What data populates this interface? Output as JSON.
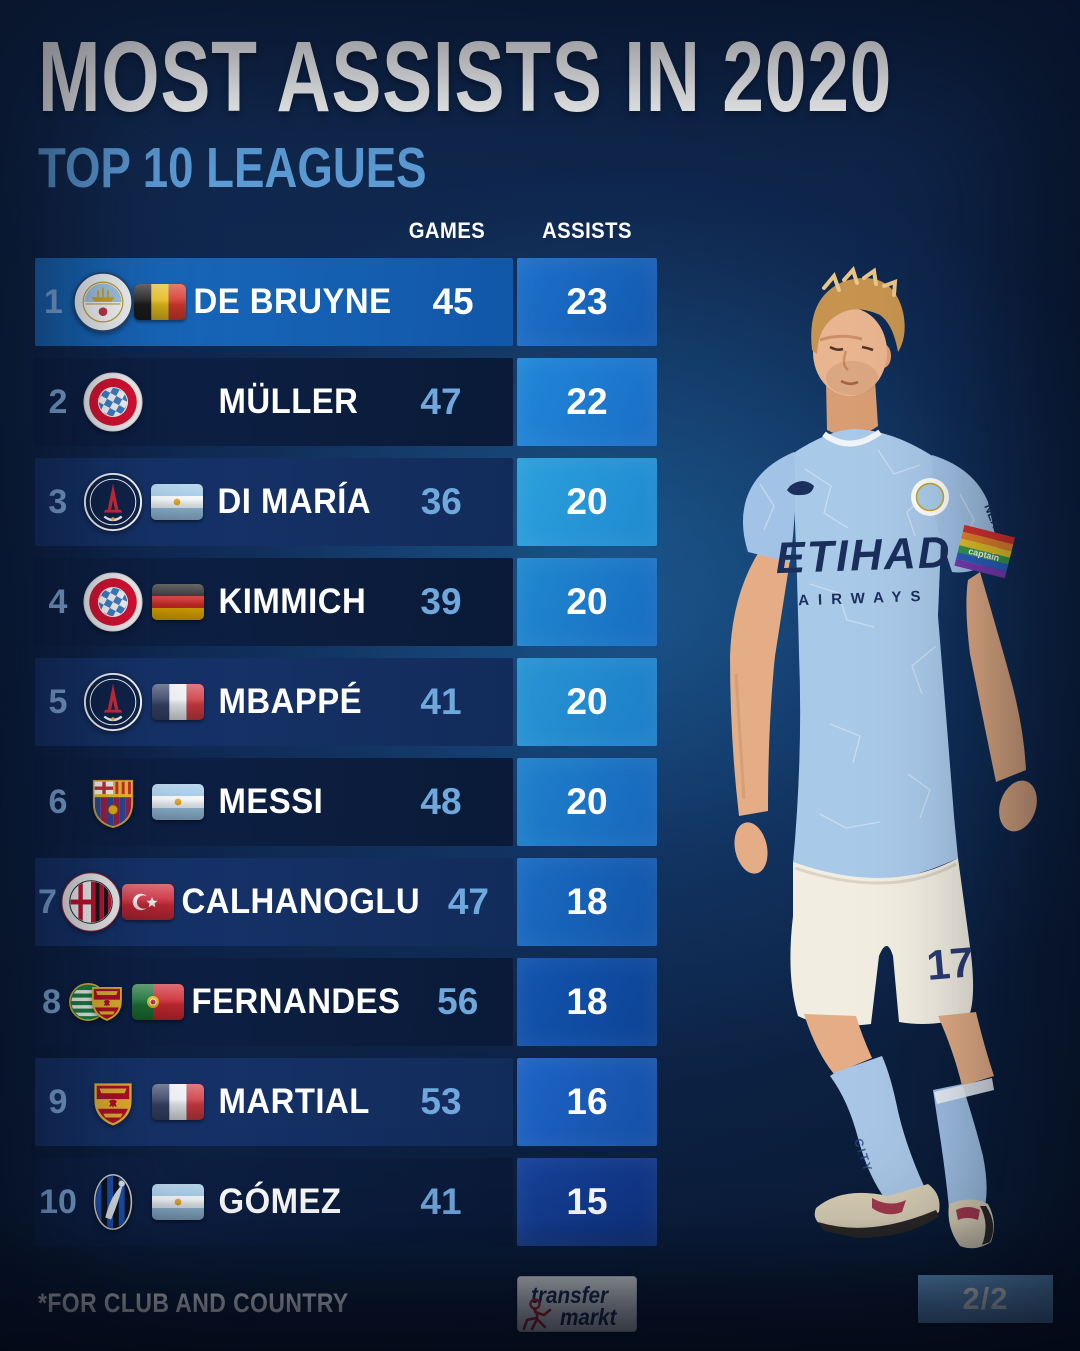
{
  "title": "MOST ASSISTS IN 2020",
  "subtitle": "TOP 10 LEAGUES",
  "table": {
    "headers": {
      "games": "GAMES",
      "assists": "ASSISTS"
    },
    "rows": [
      {
        "rank": "1",
        "player": "DE BRUYNE",
        "clubs": [
          "manchester-city"
        ],
        "nationality": "belgium",
        "games": "45",
        "assists": "23",
        "highlighted": true
      },
      {
        "rank": "2",
        "player": "MÜLLER",
        "clubs": [
          "bayern-munich"
        ],
        "nationality": null,
        "games": "47",
        "assists": "22",
        "highlighted": false
      },
      {
        "rank": "3",
        "player": "DI MARÍA",
        "clubs": [
          "paris-saint-germain"
        ],
        "nationality": "argentina",
        "games": "36",
        "assists": "20",
        "highlighted": false
      },
      {
        "rank": "4",
        "player": "KIMMICH",
        "clubs": [
          "bayern-munich"
        ],
        "nationality": "germany",
        "games": "39",
        "assists": "20",
        "highlighted": false
      },
      {
        "rank": "5",
        "player": "MBAPPÉ",
        "clubs": [
          "paris-saint-germain"
        ],
        "nationality": "france",
        "games": "41",
        "assists": "20",
        "highlighted": false
      },
      {
        "rank": "6",
        "player": "MESSI",
        "clubs": [
          "barcelona"
        ],
        "nationality": "argentina",
        "games": "48",
        "assists": "20",
        "highlighted": false
      },
      {
        "rank": "7",
        "player": "CALHANOGLU",
        "clubs": [
          "ac-milan"
        ],
        "nationality": "turkey",
        "games": "47",
        "assists": "18",
        "highlighted": false
      },
      {
        "rank": "8",
        "player": "FERNANDES",
        "clubs": [
          "sporting-cp",
          "manchester-united"
        ],
        "nationality": "portugal",
        "games": "56",
        "assists": "18",
        "highlighted": false
      },
      {
        "rank": "9",
        "player": "MARTIAL",
        "clubs": [
          "manchester-united"
        ],
        "nationality": "france",
        "games": "53",
        "assists": "16",
        "highlighted": false
      },
      {
        "rank": "10",
        "player": "GÓMEZ",
        "clubs": [
          "atalanta"
        ],
        "nationality": "argentina",
        "games": "41",
        "assists": "15",
        "highlighted": false
      }
    ]
  },
  "player_image": {
    "subject": "Kevin De Bruyne",
    "shirt_sponsor_line1": "ETIHAD",
    "shirt_sponsor_line2": "AIRWAYS",
    "shirt_number": "17",
    "armband_text": "captain",
    "sleeve_text": "NEXEN",
    "sock_text": "CITY"
  },
  "footer": {
    "footnote": "*FOR CLUB AND COUNTRY",
    "brand_line1": "transfer",
    "brand_line2": "markt",
    "page_indicator": "2/2"
  },
  "colors": {
    "background_navy": "#0c1f40",
    "subtitle_blue": "#5d9dd8",
    "row_highlight_blue": "#1a6cc0",
    "row_medium_navy": "#17356e",
    "row_dark_navy": "#0e2248",
    "rank_number_blue": "#85b4e6",
    "games_number_blue": "#6fa8dc",
    "page_badge_blue": "#6ba6dd",
    "text_white": "#ffffff",
    "assist_cell_gradients": [
      [
        "#1c70ca",
        "#1459b0"
      ],
      [
        "#2187d8",
        "#1a6ec6"
      ],
      [
        "#2ba0dc",
        "#1f8ad0"
      ],
      [
        "#2089d0",
        "#186cc2"
      ],
      [
        "#2795d4",
        "#1d7ec8"
      ],
      [
        "#1f81cc",
        "#1766bc"
      ],
      [
        "#1a6cc4",
        "#1254a8"
      ],
      [
        "#1255b0",
        "#0d4394"
      ],
      [
        "#1d64c6",
        "#154fa6"
      ],
      [
        "#16429a",
        "#0f3382"
      ]
    ]
  }
}
